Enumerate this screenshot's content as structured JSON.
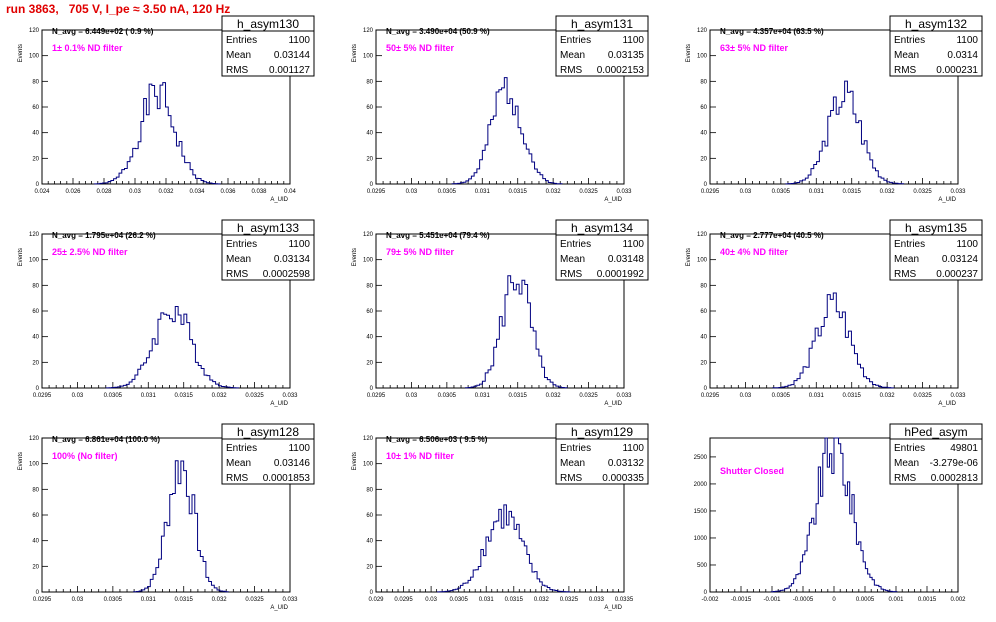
{
  "run_title": "run 3863,   705 V, I_pe ≈ 3.50 nA, 120 Hz",
  "colors": {
    "title": "#e00000",
    "hist": "#000080",
    "filter": "#ff00ff"
  },
  "chart_data": [
    {
      "type": "histogram",
      "name": "h_asym130",
      "navg": "N_avg = 6.449e+02 ( 0.9 %)",
      "filter": "1± 0.1% ND filter",
      "stats": {
        "entries_label": "Entries",
        "entries": "1100",
        "mean_label": "Mean",
        "mean": "0.03144",
        "rms_label": "RMS",
        "rms": "0.001127"
      },
      "xlabel": "A_UID",
      "ylabel": "Events",
      "xlim": [
        0.024,
        0.04
      ],
      "ylim": [
        0,
        120
      ],
      "xticks": [
        "0.024",
        "0.026",
        "0.028",
        "0.03",
        "0.032",
        "0.034",
        "0.036",
        "0.038",
        "0.04"
      ],
      "yticks": [
        "0",
        "20",
        "40",
        "60",
        "80",
        "100",
        "120"
      ],
      "mean": 0.03144,
      "sigma": 0.001127,
      "peak": 70,
      "nbins": 46,
      "seed": 1
    },
    {
      "type": "histogram",
      "name": "h_asym131",
      "navg": "N_avg = 3.490e+04 (50.9 %)",
      "filter": "50± 5% ND filter",
      "stats": {
        "entries_label": "Entries",
        "entries": "1100",
        "mean_label": "Mean",
        "mean": "0.03135",
        "rms_label": "RMS",
        "rms": "0.0002153"
      },
      "xlabel": "A_UID",
      "ylabel": "Events",
      "xlim": [
        0.0295,
        0.033
      ],
      "ylim": [
        0,
        120
      ],
      "xticks": [
        "0.0295",
        "0.03",
        "0.0305",
        "0.031",
        "0.0315",
        "0.032",
        "0.0325",
        "0.033"
      ],
      "yticks": [
        "0",
        "20",
        "40",
        "60",
        "80",
        "100",
        "120"
      ],
      "mean": 0.03135,
      "sigma": 0.0002153,
      "peak": 75,
      "nbins": 40,
      "seed": 2
    },
    {
      "type": "histogram",
      "name": "h_asym132",
      "navg": "N_avg = 4.357e+04 (63.5 %)",
      "filter": "63± 5% ND filter",
      "stats": {
        "entries_label": "Entries",
        "entries": "1100",
        "mean_label": "Mean",
        "mean": "0.0314",
        "rms_label": "RMS",
        "rms": "0.000231"
      },
      "xlabel": "A_UID",
      "ylabel": "Events",
      "xlim": [
        0.0295,
        0.033
      ],
      "ylim": [
        0,
        120
      ],
      "xticks": [
        "0.0295",
        "0.03",
        "0.0305",
        "0.031",
        "0.0315",
        "0.032",
        "0.0325",
        "0.033"
      ],
      "yticks": [
        "0",
        "20",
        "40",
        "60",
        "80",
        "100",
        "120"
      ],
      "mean": 0.0314,
      "sigma": 0.000231,
      "peak": 70,
      "nbins": 42,
      "seed": 3
    },
    {
      "type": "histogram",
      "name": "h_asym133",
      "navg": "N_avg = 1.795e+04 (26.2 %)",
      "filter": "25± 2.5% ND filter",
      "stats": {
        "entries_label": "Entries",
        "entries": "1100",
        "mean_label": "Mean",
        "mean": "0.03134",
        "rms_label": "RMS",
        "rms": "0.0002598"
      },
      "xlabel": "A_UID",
      "ylabel": "Events",
      "xlim": [
        0.0295,
        0.033
      ],
      "ylim": [
        0,
        120
      ],
      "xticks": [
        "0.0295",
        "0.03",
        "0.0305",
        "0.031",
        "0.0315",
        "0.032",
        "0.0325",
        "0.033"
      ],
      "yticks": [
        "0",
        "20",
        "40",
        "60",
        "80",
        "100",
        "120"
      ],
      "mean": 0.03134,
      "sigma": 0.0002598,
      "peak": 62,
      "nbins": 46,
      "seed": 4
    },
    {
      "type": "histogram",
      "name": "h_asym134",
      "navg": "N_avg = 5.451e+04 (79.4 %)",
      "filter": "79± 5% ND filter",
      "stats": {
        "entries_label": "Entries",
        "entries": "1100",
        "mean_label": "Mean",
        "mean": "0.03148",
        "rms_label": "RMS",
        "rms": "0.0001992"
      },
      "xlabel": "A_UID",
      "ylabel": "Events",
      "xlim": [
        0.0295,
        0.033
      ],
      "ylim": [
        0,
        120
      ],
      "xticks": [
        "0.0295",
        "0.03",
        "0.0305",
        "0.031",
        "0.0315",
        "0.032",
        "0.0325",
        "0.033"
      ],
      "yticks": [
        "0",
        "20",
        "40",
        "60",
        "80",
        "100",
        "120"
      ],
      "mean": 0.03148,
      "sigma": 0.0001992,
      "peak": 88,
      "nbins": 36,
      "seed": 5
    },
    {
      "type": "histogram",
      "name": "h_asym135",
      "navg": "N_avg = 2.777e+04 (40.5 %)",
      "filter": "40± 4% ND filter",
      "stats": {
        "entries_label": "Entries",
        "entries": "1100",
        "mean_label": "Mean",
        "mean": "0.03124",
        "rms_label": "RMS",
        "rms": "0.000237"
      },
      "xlabel": "A_UID",
      "ylabel": "Events",
      "xlim": [
        0.0295,
        0.033
      ],
      "ylim": [
        0,
        120
      ],
      "xticks": [
        "0.0295",
        "0.03",
        "0.0305",
        "0.031",
        "0.0315",
        "0.032",
        "0.0325",
        "0.033"
      ],
      "yticks": [
        "0",
        "20",
        "40",
        "60",
        "80",
        "100",
        "120"
      ],
      "mean": 0.03124,
      "sigma": 0.000237,
      "peak": 64,
      "nbins": 40,
      "seed": 6
    },
    {
      "type": "histogram",
      "name": "h_asym128",
      "navg": "N_avg = 6.861e+04 (100.0 %)",
      "filter": "100% (No filter)",
      "stats": {
        "entries_label": "Entries",
        "entries": "1100",
        "mean_label": "Mean",
        "mean": "0.03146",
        "rms_label": "RMS",
        "rms": "0.0001853"
      },
      "xlabel": "A_UID",
      "ylabel": "Events",
      "xlim": [
        0.0295,
        0.033
      ],
      "ylim": [
        0,
        120
      ],
      "xticks": [
        "0.0295",
        "0.03",
        "0.0305",
        "0.031",
        "0.0315",
        "0.032",
        "0.0325",
        "0.033"
      ],
      "yticks": [
        "0",
        "20",
        "40",
        "60",
        "80",
        "100",
        "120"
      ],
      "mean": 0.03146,
      "sigma": 0.0001853,
      "peak": 100,
      "nbins": 34,
      "seed": 7
    },
    {
      "type": "histogram",
      "name": "h_asym129",
      "navg": "N_avg = 6.506e+03 ( 9.5 %)",
      "filter": "10± 1% ND filter",
      "stats": {
        "entries_label": "Entries",
        "entries": "1100",
        "mean_label": "Mean",
        "mean": "0.03132",
        "rms_label": "RMS",
        "rms": "0.000335"
      },
      "xlabel": "A_UID",
      "ylabel": "Events",
      "xlim": [
        0.029,
        0.0335
      ],
      "ylim": [
        0,
        120
      ],
      "xticks": [
        "0.029",
        "0.0295",
        "0.03",
        "0.0305",
        "0.031",
        "0.0315",
        "0.032",
        "0.0325",
        "0.033",
        "0.0335"
      ],
      "yticks": [
        "0",
        "20",
        "40",
        "60",
        "80",
        "100",
        "120"
      ],
      "mean": 0.03132,
      "sigma": 0.000335,
      "peak": 60,
      "nbins": 52,
      "seed": 8
    },
    {
      "type": "histogram",
      "name": "hPed_asym",
      "navg": "",
      "filter": "Shutter Closed",
      "stats": {
        "entries_label": "Entries",
        "entries": "49801",
        "mean_label": "Mean",
        "mean": "-3.279e-06",
        "rms_label": "RMS",
        "rms": "0.0002813"
      },
      "xlabel": "",
      "ylabel": "",
      "xlim": [
        -0.002,
        0.002
      ],
      "ylim": [
        0,
        2850
      ],
      "xticks": [
        "-0.002",
        "-0.0015",
        "-0.001",
        "-0.0005",
        "0",
        "0.0005",
        "0.001",
        "0.0015",
        "0.002"
      ],
      "yticks": [
        "0",
        "500",
        "1000",
        "1500",
        "2000",
        "2500"
      ],
      "mean": 0.0,
      "sigma": 0.0002813,
      "peak": 2700,
      "nbins": 56,
      "seed": 9
    }
  ]
}
